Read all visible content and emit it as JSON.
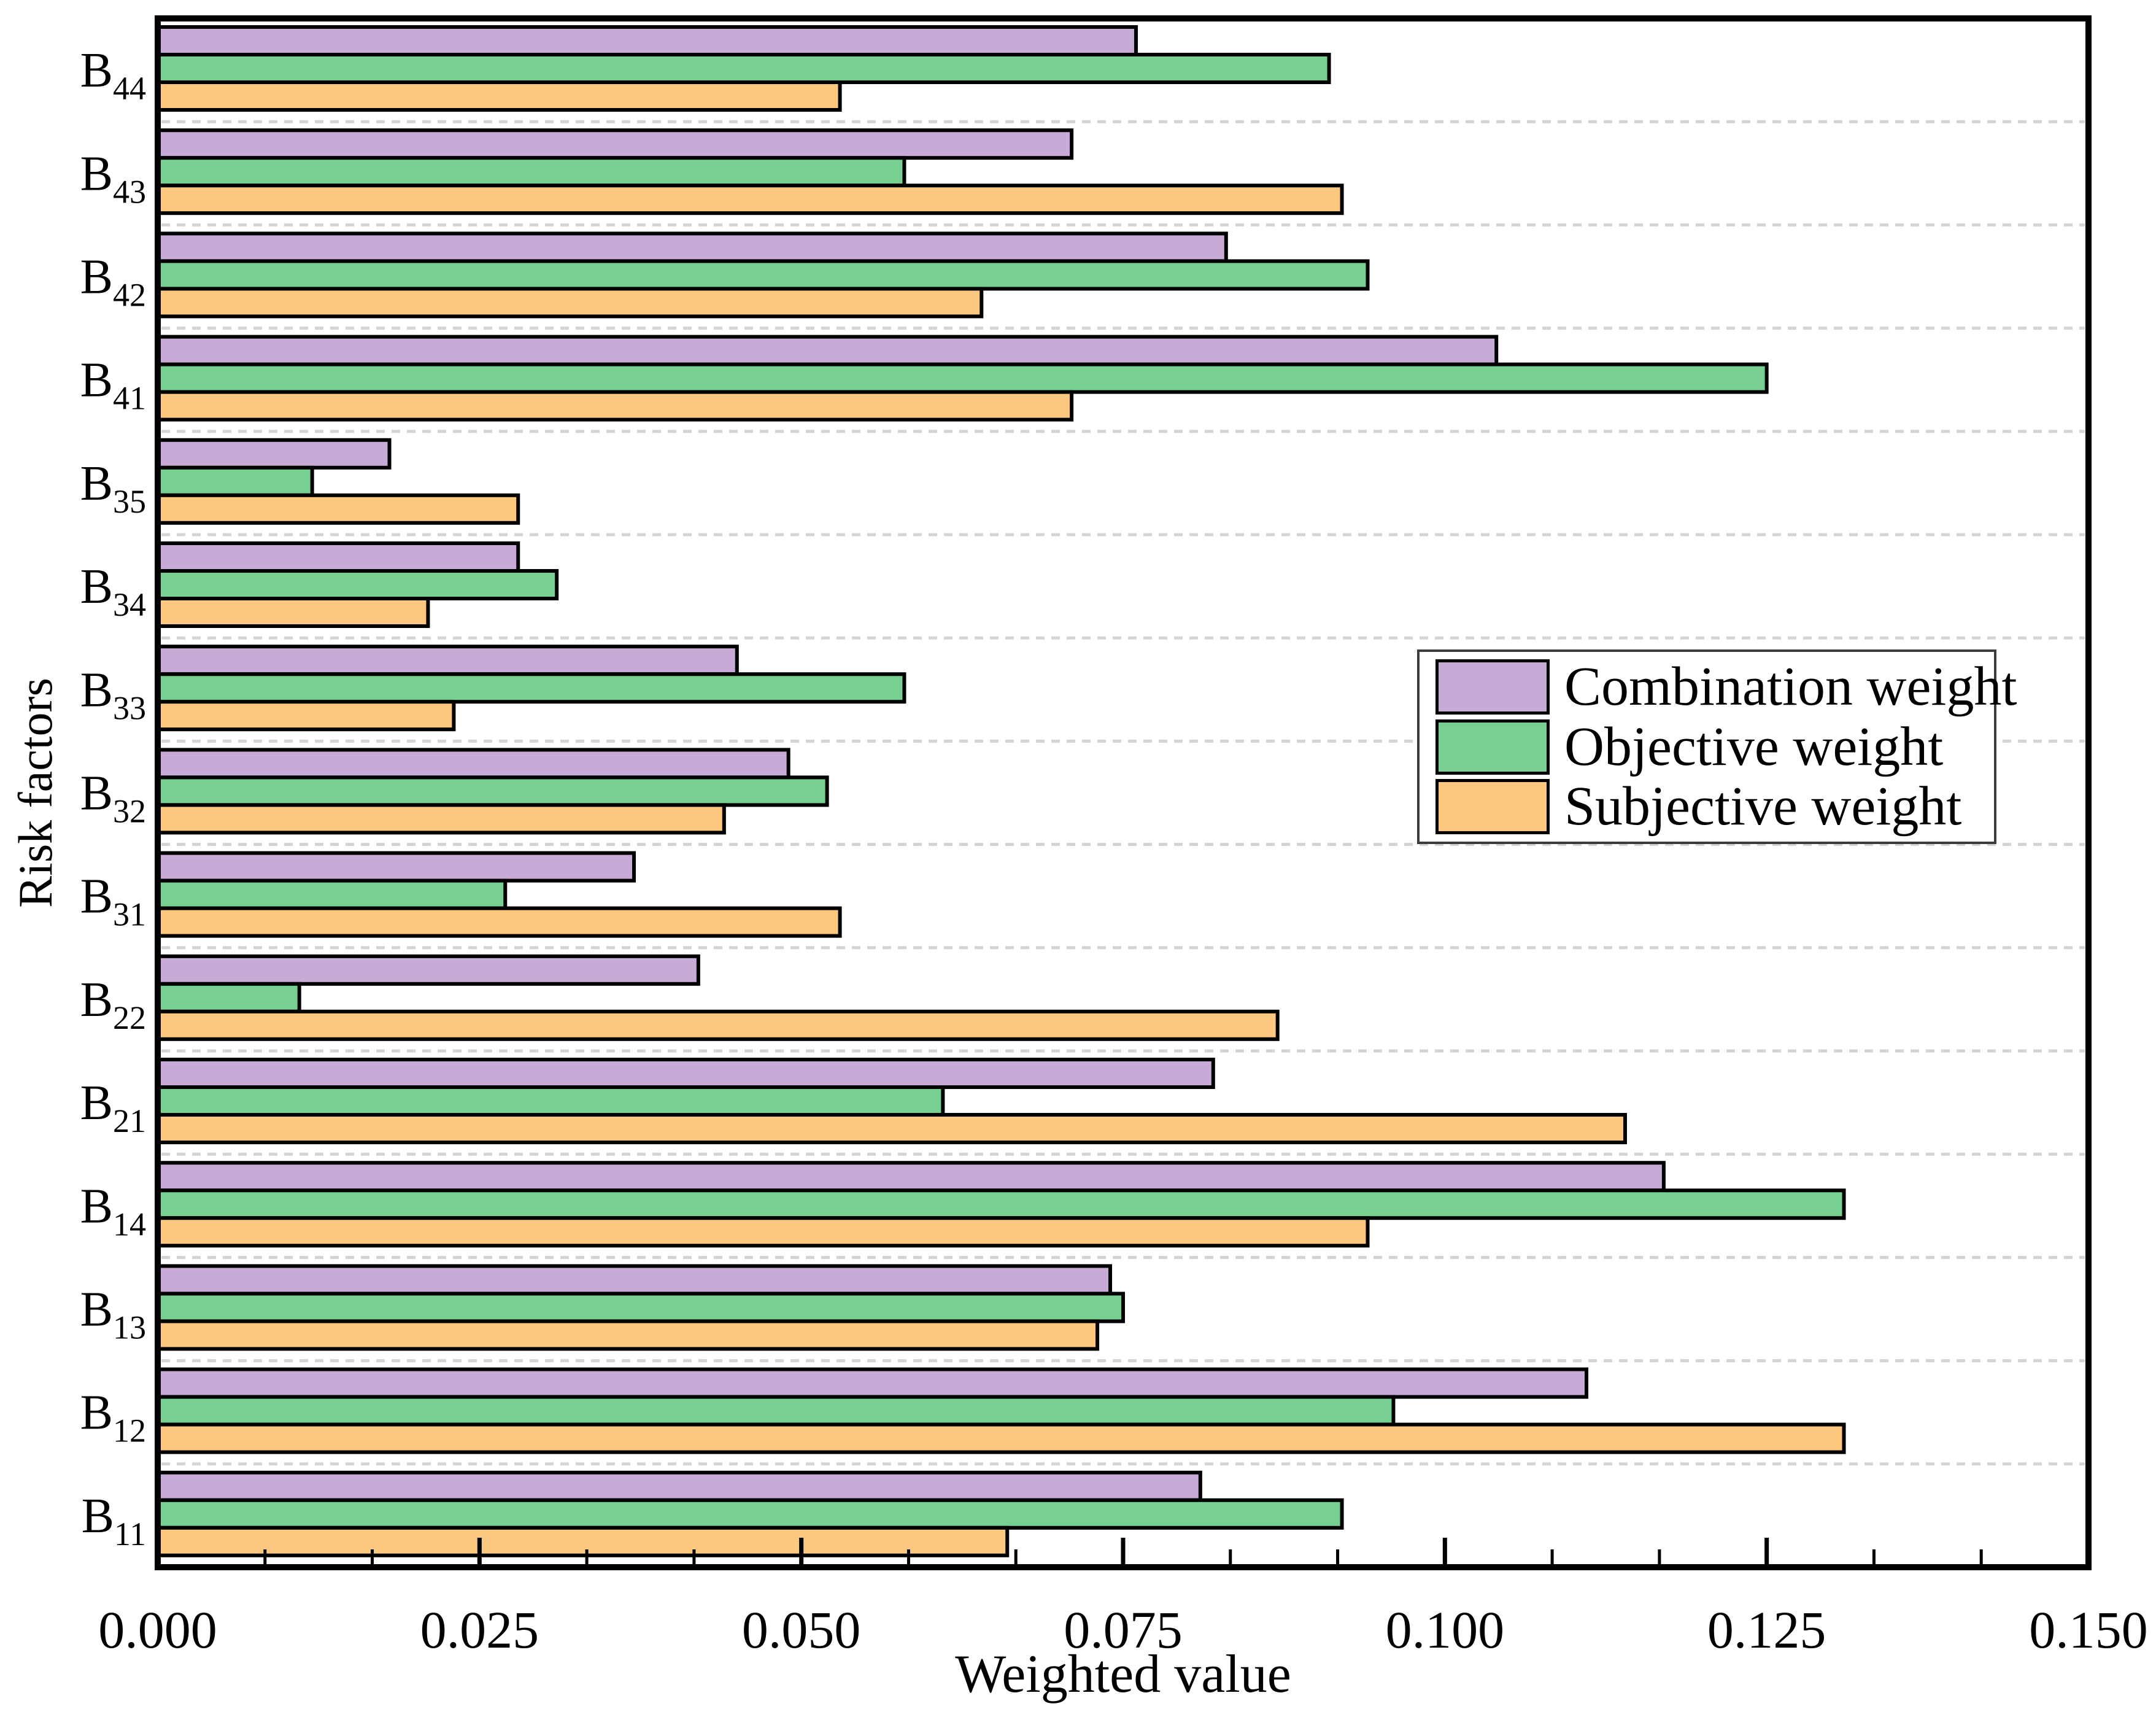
{
  "chart_data": {
    "type": "bar",
    "orientation": "horizontal",
    "title": "",
    "xlabel": "Weighted value",
    "ylabel": "Risk factors",
    "xlim": [
      0,
      0.15
    ],
    "x_tick_values": [
      0,
      0.025,
      0.05,
      0.075,
      0.1,
      0.125,
      0.15
    ],
    "x_tick_labels": [
      "0.000",
      "0.025",
      "0.050",
      "0.075",
      "0.100",
      "0.125",
      "0.150"
    ],
    "x_minor_divisions_per_major": 3,
    "grid": "light dashed horizontal lines between category groups",
    "legend_position": "center right",
    "background_color": "#ffffff",
    "axis_color": "#000000",
    "gridline_color": "#d4d4d4",
    "bar_edge_color": "#000000",
    "category_label_style": "B with numeric subscript",
    "categories_top_to_bottom": [
      "B44",
      "B43",
      "B42",
      "B41",
      "B35",
      "B34",
      "B33",
      "B32",
      "B31",
      "B22",
      "B21",
      "B14",
      "B13",
      "B12",
      "B11"
    ],
    "series": [
      {
        "name": "Combination weight",
        "color": "#C7ABD6",
        "values": [
          0.076,
          0.071,
          0.083,
          0.104,
          0.018,
          0.028,
          0.045,
          0.049,
          0.037,
          0.042,
          0.082,
          0.117,
          0.074,
          0.111,
          0.081
        ]
      },
      {
        "name": "Objective weight",
        "color": "#77D092",
        "values": [
          0.091,
          0.058,
          0.094,
          0.125,
          0.012,
          0.031,
          0.058,
          0.052,
          0.027,
          0.011,
          0.061,
          0.131,
          0.075,
          0.096,
          0.092
        ]
      },
      {
        "name": "Subjective weight",
        "color": "#FCC77E",
        "values": [
          0.053,
          0.092,
          0.064,
          0.071,
          0.028,
          0.021,
          0.023,
          0.044,
          0.053,
          0.087,
          0.114,
          0.094,
          0.073,
          0.131,
          0.066
        ]
      }
    ]
  }
}
